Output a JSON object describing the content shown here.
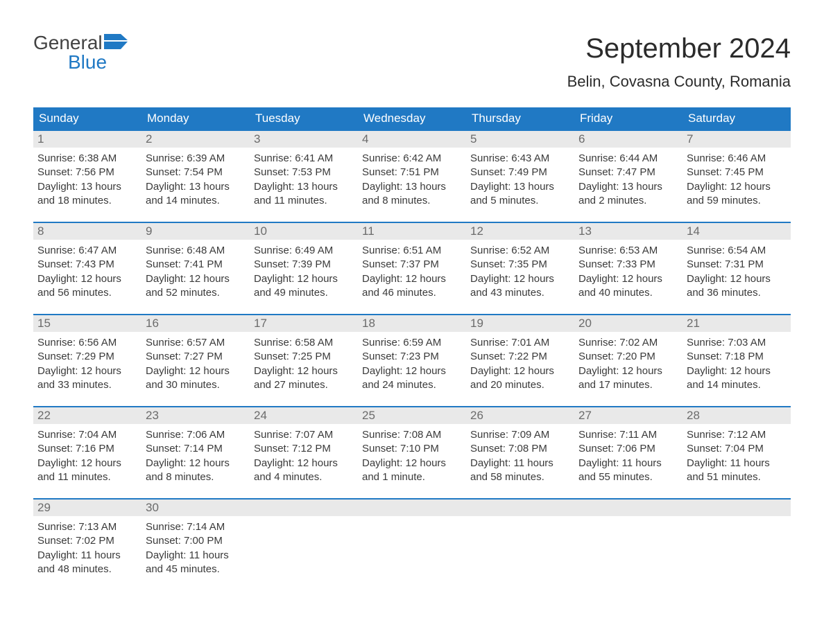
{
  "logo": {
    "line1": "General",
    "line2": "Blue"
  },
  "title": "September 2024",
  "location": "Belin, Covasna County, Romania",
  "colors": {
    "header_bg": "#2079c4",
    "header_text": "#ffffff",
    "daynum_bg": "#e9e9e9",
    "daynum_text": "#6b6b6b",
    "rule": "#2079c4",
    "body_text": "#3a3a3a",
    "logo_gray": "#424242",
    "logo_blue": "#2079c4"
  },
  "day_headers": [
    "Sunday",
    "Monday",
    "Tuesday",
    "Wednesday",
    "Thursday",
    "Friday",
    "Saturday"
  ],
  "weeks": [
    [
      {
        "n": "1",
        "sunrise": "Sunrise: 6:38 AM",
        "sunset": "Sunset: 7:56 PM",
        "dl1": "Daylight: 13 hours",
        "dl2": "and 18 minutes."
      },
      {
        "n": "2",
        "sunrise": "Sunrise: 6:39 AM",
        "sunset": "Sunset: 7:54 PM",
        "dl1": "Daylight: 13 hours",
        "dl2": "and 14 minutes."
      },
      {
        "n": "3",
        "sunrise": "Sunrise: 6:41 AM",
        "sunset": "Sunset: 7:53 PM",
        "dl1": "Daylight: 13 hours",
        "dl2": "and 11 minutes."
      },
      {
        "n": "4",
        "sunrise": "Sunrise: 6:42 AM",
        "sunset": "Sunset: 7:51 PM",
        "dl1": "Daylight: 13 hours",
        "dl2": "and 8 minutes."
      },
      {
        "n": "5",
        "sunrise": "Sunrise: 6:43 AM",
        "sunset": "Sunset: 7:49 PM",
        "dl1": "Daylight: 13 hours",
        "dl2": "and 5 minutes."
      },
      {
        "n": "6",
        "sunrise": "Sunrise: 6:44 AM",
        "sunset": "Sunset: 7:47 PM",
        "dl1": "Daylight: 13 hours",
        "dl2": "and 2 minutes."
      },
      {
        "n": "7",
        "sunrise": "Sunrise: 6:46 AM",
        "sunset": "Sunset: 7:45 PM",
        "dl1": "Daylight: 12 hours",
        "dl2": "and 59 minutes."
      }
    ],
    [
      {
        "n": "8",
        "sunrise": "Sunrise: 6:47 AM",
        "sunset": "Sunset: 7:43 PM",
        "dl1": "Daylight: 12 hours",
        "dl2": "and 56 minutes."
      },
      {
        "n": "9",
        "sunrise": "Sunrise: 6:48 AM",
        "sunset": "Sunset: 7:41 PM",
        "dl1": "Daylight: 12 hours",
        "dl2": "and 52 minutes."
      },
      {
        "n": "10",
        "sunrise": "Sunrise: 6:49 AM",
        "sunset": "Sunset: 7:39 PM",
        "dl1": "Daylight: 12 hours",
        "dl2": "and 49 minutes."
      },
      {
        "n": "11",
        "sunrise": "Sunrise: 6:51 AM",
        "sunset": "Sunset: 7:37 PM",
        "dl1": "Daylight: 12 hours",
        "dl2": "and 46 minutes."
      },
      {
        "n": "12",
        "sunrise": "Sunrise: 6:52 AM",
        "sunset": "Sunset: 7:35 PM",
        "dl1": "Daylight: 12 hours",
        "dl2": "and 43 minutes."
      },
      {
        "n": "13",
        "sunrise": "Sunrise: 6:53 AM",
        "sunset": "Sunset: 7:33 PM",
        "dl1": "Daylight: 12 hours",
        "dl2": "and 40 minutes."
      },
      {
        "n": "14",
        "sunrise": "Sunrise: 6:54 AM",
        "sunset": "Sunset: 7:31 PM",
        "dl1": "Daylight: 12 hours",
        "dl2": "and 36 minutes."
      }
    ],
    [
      {
        "n": "15",
        "sunrise": "Sunrise: 6:56 AM",
        "sunset": "Sunset: 7:29 PM",
        "dl1": "Daylight: 12 hours",
        "dl2": "and 33 minutes."
      },
      {
        "n": "16",
        "sunrise": "Sunrise: 6:57 AM",
        "sunset": "Sunset: 7:27 PM",
        "dl1": "Daylight: 12 hours",
        "dl2": "and 30 minutes."
      },
      {
        "n": "17",
        "sunrise": "Sunrise: 6:58 AM",
        "sunset": "Sunset: 7:25 PM",
        "dl1": "Daylight: 12 hours",
        "dl2": "and 27 minutes."
      },
      {
        "n": "18",
        "sunrise": "Sunrise: 6:59 AM",
        "sunset": "Sunset: 7:23 PM",
        "dl1": "Daylight: 12 hours",
        "dl2": "and 24 minutes."
      },
      {
        "n": "19",
        "sunrise": "Sunrise: 7:01 AM",
        "sunset": "Sunset: 7:22 PM",
        "dl1": "Daylight: 12 hours",
        "dl2": "and 20 minutes."
      },
      {
        "n": "20",
        "sunrise": "Sunrise: 7:02 AM",
        "sunset": "Sunset: 7:20 PM",
        "dl1": "Daylight: 12 hours",
        "dl2": "and 17 minutes."
      },
      {
        "n": "21",
        "sunrise": "Sunrise: 7:03 AM",
        "sunset": "Sunset: 7:18 PM",
        "dl1": "Daylight: 12 hours",
        "dl2": "and 14 minutes."
      }
    ],
    [
      {
        "n": "22",
        "sunrise": "Sunrise: 7:04 AM",
        "sunset": "Sunset: 7:16 PM",
        "dl1": "Daylight: 12 hours",
        "dl2": "and 11 minutes."
      },
      {
        "n": "23",
        "sunrise": "Sunrise: 7:06 AM",
        "sunset": "Sunset: 7:14 PM",
        "dl1": "Daylight: 12 hours",
        "dl2": "and 8 minutes."
      },
      {
        "n": "24",
        "sunrise": "Sunrise: 7:07 AM",
        "sunset": "Sunset: 7:12 PM",
        "dl1": "Daylight: 12 hours",
        "dl2": "and 4 minutes."
      },
      {
        "n": "25",
        "sunrise": "Sunrise: 7:08 AM",
        "sunset": "Sunset: 7:10 PM",
        "dl1": "Daylight: 12 hours",
        "dl2": "and 1 minute."
      },
      {
        "n": "26",
        "sunrise": "Sunrise: 7:09 AM",
        "sunset": "Sunset: 7:08 PM",
        "dl1": "Daylight: 11 hours",
        "dl2": "and 58 minutes."
      },
      {
        "n": "27",
        "sunrise": "Sunrise: 7:11 AM",
        "sunset": "Sunset: 7:06 PM",
        "dl1": "Daylight: 11 hours",
        "dl2": "and 55 minutes."
      },
      {
        "n": "28",
        "sunrise": "Sunrise: 7:12 AM",
        "sunset": "Sunset: 7:04 PM",
        "dl1": "Daylight: 11 hours",
        "dl2": "and 51 minutes."
      }
    ],
    [
      {
        "n": "29",
        "sunrise": "Sunrise: 7:13 AM",
        "sunset": "Sunset: 7:02 PM",
        "dl1": "Daylight: 11 hours",
        "dl2": "and 48 minutes."
      },
      {
        "n": "30",
        "sunrise": "Sunrise: 7:14 AM",
        "sunset": "Sunset: 7:00 PM",
        "dl1": "Daylight: 11 hours",
        "dl2": "and 45 minutes."
      },
      {
        "n": "",
        "sunrise": "",
        "sunset": "",
        "dl1": "",
        "dl2": ""
      },
      {
        "n": "",
        "sunrise": "",
        "sunset": "",
        "dl1": "",
        "dl2": ""
      },
      {
        "n": "",
        "sunrise": "",
        "sunset": "",
        "dl1": "",
        "dl2": ""
      },
      {
        "n": "",
        "sunrise": "",
        "sunset": "",
        "dl1": "",
        "dl2": ""
      },
      {
        "n": "",
        "sunrise": "",
        "sunset": "",
        "dl1": "",
        "dl2": ""
      }
    ]
  ]
}
